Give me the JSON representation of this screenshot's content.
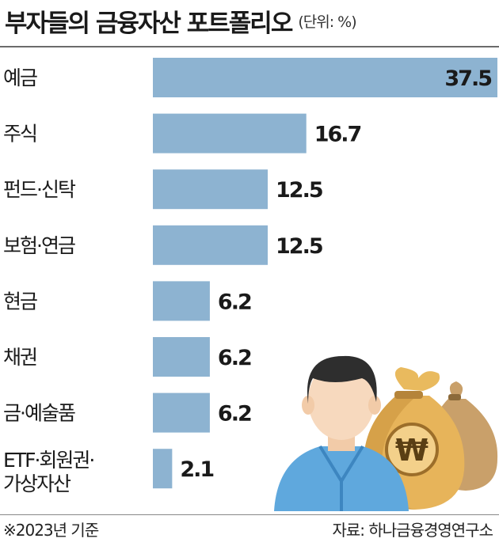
{
  "header": {
    "title": "부자들의 금융자산 포트폴리오",
    "unit": "(단위: %)"
  },
  "chart_data": {
    "type": "bar",
    "orientation": "horizontal",
    "categories": [
      "예금",
      "주식",
      "펀드·신탁",
      "보험·연금",
      "현금",
      "채권",
      "금·예술품",
      "ETF·회원권·\n가상자산"
    ],
    "values": [
      37.5,
      16.7,
      12.5,
      12.5,
      6.2,
      6.2,
      6.2,
      2.1
    ],
    "value_labels": [
      "37.5",
      "16.7",
      "12.5",
      "12.5",
      "6.2",
      "6.2",
      "6.2",
      "2.1"
    ],
    "bar_color": "#8db3d1",
    "xlim": [
      0,
      37.5
    ],
    "grid": false,
    "legend": "none"
  },
  "footer": {
    "note": "※2023년 기준",
    "source": "자료: 하나금융경영연구소"
  },
  "illustration": {
    "icons": [
      "person-icon",
      "money-bag-icon"
    ],
    "bag_symbol": "₩",
    "colors": {
      "shirt": "#5fa8dd",
      "skin": "#f7d9be",
      "hair": "#2e2e2e",
      "bag": "#e7b45a",
      "bag_dark": "#b98a3c"
    }
  }
}
